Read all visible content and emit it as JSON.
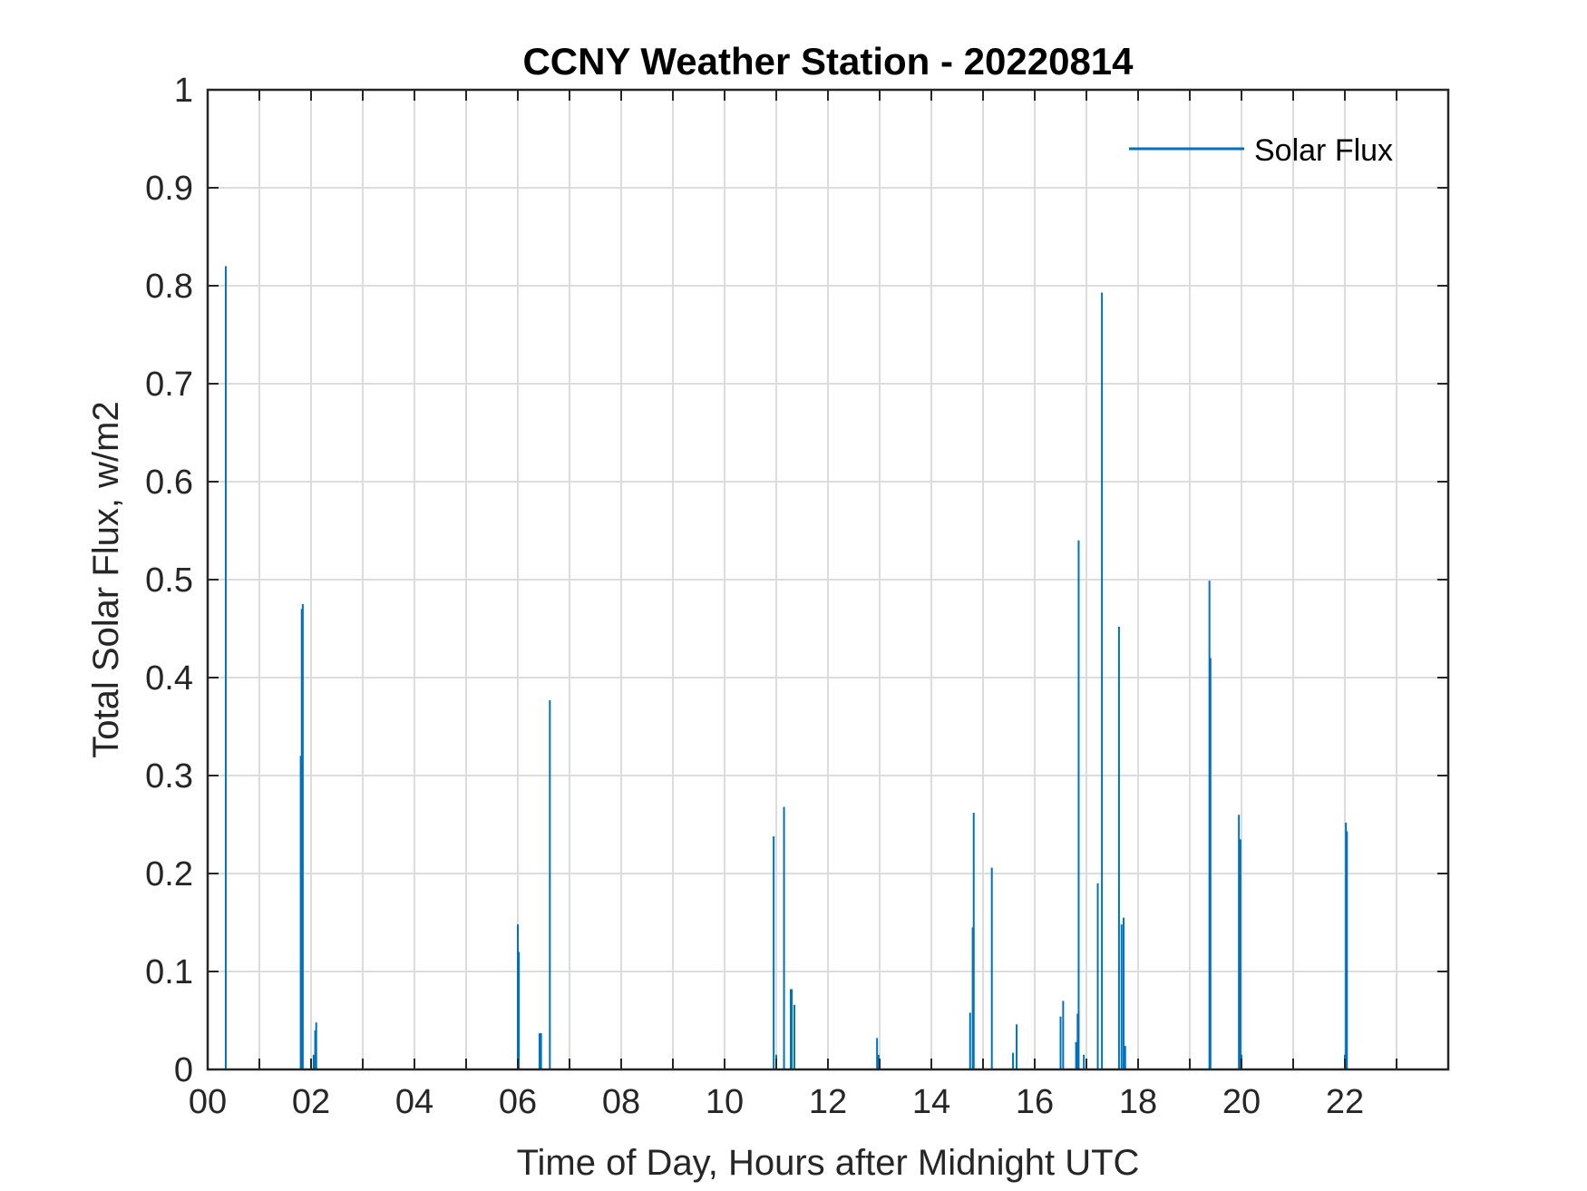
{
  "chart_data": {
    "type": "bar",
    "title": "CCNY Weather Station - 20220814",
    "xlabel": "Time of Day, Hours after Midnight UTC",
    "ylabel": "Total Solar Flux, w/m2",
    "xlim": [
      0,
      24
    ],
    "ylim": [
      0,
      1
    ],
    "grid": true,
    "legend": {
      "entries": [
        "Solar Flux"
      ],
      "location": "top-right"
    },
    "xticks": [
      0,
      2,
      4,
      6,
      8,
      10,
      12,
      14,
      16,
      18,
      20,
      22
    ],
    "xtick_labels": [
      "00",
      "02",
      "04",
      "06",
      "08",
      "10",
      "12",
      "14",
      "16",
      "18",
      "20",
      "22"
    ],
    "yticks": [
      0,
      0.1,
      0.2,
      0.3,
      0.4,
      0.5,
      0.6,
      0.7,
      0.8,
      0.9,
      1
    ],
    "ytick_labels": [
      "0",
      "0.1",
      "0.2",
      "0.3",
      "0.4",
      "0.5",
      "0.6",
      "0.7",
      "0.8",
      "0.9",
      "1"
    ],
    "series": [
      {
        "name": "Solar Flux",
        "color": "#0072BD",
        "points": [
          [
            0.35,
            0.82
          ],
          [
            1.8,
            0.32
          ],
          [
            1.82,
            0.47
          ],
          [
            1.84,
            0.475
          ],
          [
            2.05,
            0.015
          ],
          [
            2.08,
            0.04
          ],
          [
            2.1,
            0.048
          ],
          [
            6.0,
            0.148
          ],
          [
            6.02,
            0.12
          ],
          [
            6.42,
            0.037
          ],
          [
            6.45,
            0.037
          ],
          [
            6.62,
            0.377
          ],
          [
            10.95,
            0.238
          ],
          [
            11.0,
            0.015
          ],
          [
            11.15,
            0.268
          ],
          [
            11.28,
            0.082
          ],
          [
            11.3,
            0.082
          ],
          [
            11.35,
            0.066
          ],
          [
            12.95,
            0.032
          ],
          [
            12.98,
            0.015
          ],
          [
            14.75,
            0.058
          ],
          [
            14.8,
            0.145
          ],
          [
            14.82,
            0.262
          ],
          [
            15.17,
            0.206
          ],
          [
            15.58,
            0.017
          ],
          [
            15.65,
            0.046
          ],
          [
            16.5,
            0.054
          ],
          [
            16.55,
            0.07
          ],
          [
            16.8,
            0.028
          ],
          [
            16.83,
            0.057
          ],
          [
            16.85,
            0.54
          ],
          [
            16.95,
            0.015
          ],
          [
            17.22,
            0.19
          ],
          [
            17.3,
            0.793
          ],
          [
            17.63,
            0.452
          ],
          [
            17.68,
            0.148
          ],
          [
            17.72,
            0.155
          ],
          [
            17.75,
            0.024
          ],
          [
            19.38,
            0.499
          ],
          [
            19.4,
            0.42
          ],
          [
            19.95,
            0.26
          ],
          [
            19.98,
            0.235
          ],
          [
            20.0,
            0.015
          ],
          [
            22.0,
            0.015
          ],
          [
            22.02,
            0.252
          ],
          [
            22.04,
            0.243
          ]
        ]
      }
    ]
  }
}
